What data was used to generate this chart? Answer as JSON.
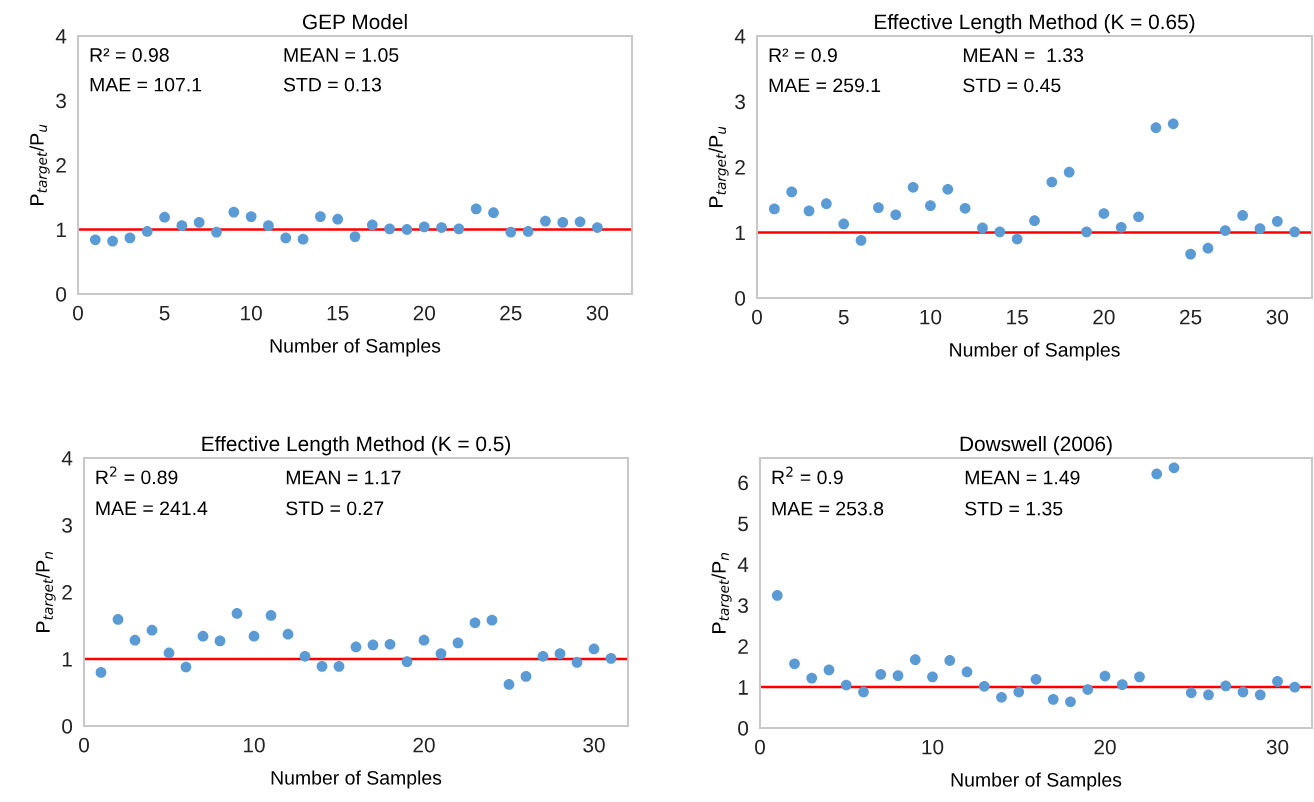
{
  "chart_data": [
    {
      "type": "scatter",
      "title": "GEP Model",
      "xlabel": "Number of Samples",
      "ylabel": "P$_{target}$/P$_{u}$",
      "annotations": [
        "R² = 0.98",
        "MEAN = 1.05",
        "MAE = 107.1",
        "STD = 0.13"
      ],
      "x": [
        1,
        2,
        3,
        4,
        5,
        6,
        7,
        8,
        9,
        10,
        11,
        12,
        13,
        14,
        15,
        16,
        17,
        18,
        19,
        20,
        21,
        22,
        23,
        24,
        25,
        26,
        27,
        28,
        29,
        30
      ],
      "series": [
        {
          "color": "#5b9bd5",
          "values": [
            0.84,
            0.82,
            0.87,
            0.97,
            1.19,
            1.06,
            1.11,
            0.96,
            1.27,
            1.2,
            1.06,
            0.87,
            0.85,
            1.2,
            1.16,
            0.89,
            1.07,
            1.01,
            1.0,
            1.04,
            1.03,
            1.01,
            1.32,
            1.26,
            0.96,
            0.97,
            1.13,
            1.11,
            1.12,
            1.03
          ]
        }
      ],
      "xlim": [
        0,
        32
      ],
      "xticks": [
        0,
        5,
        10,
        15,
        20,
        25,
        30
      ],
      "ylim": [
        0,
        4
      ],
      "yticks": [
        0,
        1,
        2,
        3,
        4
      ],
      "ref_lines": [
        {
          "axis": "y",
          "value": 1,
          "color": "#ff0000"
        }
      ],
      "marker": "circle"
    },
    {
      "type": "scatter",
      "title": "Effective Length Method (K = 0.65)",
      "xlabel": "Number of Samples",
      "ylabel": "P$_{target}$/P$_{u}$",
      "annotations": [
        "R² = 0.9",
        "MEAN =  1.33",
        "MAE = 259.1",
        "STD = 0.45"
      ],
      "x": [
        1,
        2,
        3,
        4,
        5,
        6,
        7,
        8,
        9,
        10,
        11,
        12,
        13,
        14,
        15,
        16,
        17,
        18,
        19,
        20,
        21,
        22,
        23,
        24,
        25,
        26,
        27,
        28,
        29,
        30,
        31
      ],
      "series": [
        {
          "color": "#5b9bd5",
          "values": [
            1.36,
            1.62,
            1.33,
            1.44,
            1.13,
            0.88,
            1.38,
            1.27,
            1.69,
            1.41,
            1.66,
            1.37,
            1.07,
            1.01,
            0.9,
            1.18,
            1.77,
            1.92,
            1.01,
            1.29,
            1.08,
            1.24,
            2.6,
            2.66,
            0.67,
            0.76,
            1.03,
            1.26,
            1.06,
            1.17,
            1.01
          ]
        }
      ],
      "xlim": [
        0,
        32
      ],
      "xticks": [
        0,
        5,
        10,
        15,
        20,
        25,
        30
      ],
      "ylim": [
        0,
        4
      ],
      "yticks": [
        0,
        1,
        2,
        3,
        4
      ],
      "ref_lines": [
        {
          "axis": "y",
          "value": 1,
          "color": "#ff0000"
        }
      ],
      "marker": "circle"
    },
    {
      "type": "scatter",
      "title": "Effective Length Method (K = 0.5)",
      "xlabel": "Number of Samples",
      "ylabel": "P$_{target}$/P$_{n}$",
      "annotations": [
        "R$^{2}$ = 0.89",
        "MEAN = 1.17",
        "MAE = 241.4",
        "STD = 0.27"
      ],
      "x": [
        1,
        2,
        3,
        4,
        5,
        6,
        7,
        8,
        9,
        10,
        11,
        12,
        13,
        14,
        15,
        16,
        17,
        18,
        19,
        20,
        21,
        22,
        23,
        24,
        25,
        26,
        27,
        28,
        29,
        30,
        31
      ],
      "series": [
        {
          "color": "#5b9bd5",
          "values": [
            0.8,
            1.59,
            1.28,
            1.43,
            1.09,
            0.88,
            1.34,
            1.27,
            1.68,
            1.34,
            1.65,
            1.37,
            1.04,
            0.89,
            0.89,
            1.18,
            1.21,
            1.22,
            0.96,
            1.28,
            1.08,
            1.24,
            1.54,
            1.58,
            0.62,
            0.74,
            1.04,
            1.08,
            0.95,
            1.15,
            1.01
          ]
        }
      ],
      "xlim": [
        0,
        32
      ],
      "xticks": [
        0,
        10,
        20,
        30
      ],
      "ylim": [
        0,
        4
      ],
      "yticks": [
        0,
        1,
        2,
        3,
        4
      ],
      "ref_lines": [
        {
          "axis": "y",
          "value": 1,
          "color": "#ff0000"
        }
      ],
      "marker": "circle"
    },
    {
      "type": "scatter",
      "title": "Dowswell (2006)",
      "xlabel": "Number of Samples",
      "ylabel": "P$_{target}$/P$_{n}$",
      "annotations": [
        "R$^{2}$ = 0.9",
        "MEAN = 1.49",
        "MAE = 253.8",
        "STD = 1.35"
      ],
      "x": [
        1,
        2,
        3,
        4,
        5,
        6,
        7,
        8,
        9,
        10,
        11,
        12,
        13,
        14,
        15,
        16,
        17,
        18,
        19,
        20,
        21,
        22,
        23,
        24,
        25,
        26,
        27,
        28,
        29,
        30,
        31
      ],
      "series": [
        {
          "color": "#5b9bd5",
          "values": [
            3.24,
            1.57,
            1.22,
            1.42,
            1.05,
            0.88,
            1.31,
            1.28,
            1.67,
            1.25,
            1.65,
            1.37,
            1.02,
            0.75,
            0.88,
            1.19,
            0.7,
            0.64,
            0.94,
            1.27,
            1.06,
            1.25,
            6.21,
            6.36,
            0.86,
            0.81,
            1.03,
            0.88,
            0.81,
            1.14,
            1.0
          ]
        }
      ],
      "xlim": [
        0,
        32
      ],
      "xticks": [
        0,
        10,
        20,
        30
      ],
      "ylim": [
        0,
        6.6
      ],
      "yticks": [
        0,
        1,
        2,
        3,
        4,
        5,
        6
      ],
      "ref_lines": [
        {
          "axis": "y",
          "value": 1,
          "color": "#ff0000"
        }
      ],
      "marker": "circle"
    }
  ]
}
